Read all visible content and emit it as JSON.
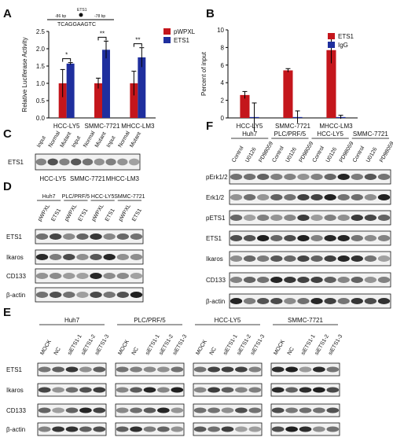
{
  "chart_data": [
    {
      "type": "bar",
      "panel_label": "A",
      "y_label": "Relative Luciferase Activity",
      "categories": [
        "HCC-LY5",
        "SMMC-7721",
        "MHCC-LM3"
      ],
      "series": [
        {
          "name": "pWPXL",
          "color": "#c4161c",
          "values": [
            1,
            1,
            1
          ],
          "errors": [
            0.4,
            0.15,
            0.35
          ]
        },
        {
          "name": "ETS1",
          "color": "#1f2f9e",
          "values": [
            1.57,
            1.97,
            1.75
          ],
          "errors": [
            0.03,
            0.25,
            0.28
          ]
        }
      ],
      "significance": [
        "*",
        "**",
        "**"
      ],
      "annotations": [
        "-86 bp",
        "ETS1",
        "-78 bp",
        "TCAGGAAGTC"
      ],
      "ylim": [
        0,
        2.5
      ],
      "yticks": [
        {
          "value": 0,
          "label": "0.0"
        },
        {
          "value": 0.5,
          "label": "0.5"
        },
        {
          "value": 1,
          "label": "1.0"
        },
        {
          "value": 1.5,
          "label": "1.5"
        },
        {
          "value": 2,
          "label": "2.0"
        },
        {
          "value": 2.5,
          "label": "2.5"
        }
      ],
      "legend": "right"
    },
    {
      "type": "bar",
      "panel_label": "B",
      "y_label": "Percent of input",
      "categories": [
        "HCC-LY5",
        "SMMC-7721",
        "MHCC-LM3"
      ],
      "series": [
        {
          "name": "ETS1",
          "color": "#c4161c",
          "values": [
            2.6,
            5.4,
            7.7
          ],
          "errors": [
            0.4,
            0.2,
            1.5
          ]
        },
        {
          "name": "IgG",
          "color": "#1f2f9e",
          "values": [
            0.1,
            0.1,
            0.1
          ],
          "errors": [
            1.6,
            0.7,
            0.2
          ]
        }
      ],
      "ylim": [
        0,
        10
      ],
      "yticks": [
        0,
        2,
        4,
        6,
        8,
        10
      ],
      "legend": "upper right"
    }
  ],
  "blots": {
    "C": {
      "label": "C",
      "rows": [
        "ETS1"
      ],
      "groups": [
        {
          "name": "HCC-LY5",
          "lanes": [
            "Input",
            "Normal",
            "Mutant"
          ]
        },
        {
          "name": "SMMC-7721",
          "lanes": [
            "Input",
            "Normal",
            "Mutant"
          ]
        },
        {
          "name": "MHCC-LM3",
          "lanes": [
            "Input",
            "Normal",
            "Mutant"
          ]
        }
      ]
    },
    "D": {
      "label": "D",
      "rows": [
        "ETS1",
        "Ikaros",
        "CD133",
        "β-actin"
      ],
      "groups": [
        {
          "name": "Huh7",
          "lanes": [
            "pWPXL",
            "ETS1"
          ]
        },
        {
          "name": "PLC/PRF/5",
          "lanes": [
            "pWPXL",
            "ETS1"
          ]
        },
        {
          "name": "HCC-LY5",
          "lanes": [
            "pWPXL",
            "ETS1"
          ]
        },
        {
          "name": "SMMC-7721",
          "lanes": [
            "pWPXL",
            "ETS1"
          ]
        }
      ]
    },
    "E": {
      "label": "E",
      "rows": [
        "ETS1",
        "Ikaros",
        "CD133",
        "β-actin"
      ],
      "groups": [
        {
          "name": "Huh7",
          "lanes": [
            "MOCK",
            "NC",
            "siETS1-1",
            "siETS1-2",
            "siETS1-3"
          ]
        },
        {
          "name": "PLC/PRF/5",
          "lanes": [
            "MOCK",
            "NC",
            "siETS1-1",
            "siETS1-2",
            "siETS1-3"
          ]
        },
        {
          "name": "HCC-LY5",
          "lanes": [
            "MOCK",
            "NC",
            "siETS1-1",
            "siETS1-2",
            "siETS1-3"
          ]
        },
        {
          "name": "SMMC-7721",
          "lanes": [
            "MOCK",
            "NC",
            "siETS1-1",
            "siETS1-2",
            "siETS1-3"
          ]
        }
      ]
    },
    "F": {
      "label": "F",
      "rows": [
        "pErk1/2",
        "Erk1/2",
        "pETS1",
        "ETS1",
        "Ikaros",
        "CD133",
        "β-actin"
      ],
      "groups": [
        {
          "name": "Huh7",
          "lanes": [
            "Control",
            "U0126",
            "PD98059"
          ]
        },
        {
          "name": "PLC/PRF/5",
          "lanes": [
            "Control",
            "U0126",
            "PD98059"
          ]
        },
        {
          "name": "HCC-LY5",
          "lanes": [
            "Control",
            "U0126",
            "PD98059"
          ]
        },
        {
          "name": "SMMC-7721",
          "lanes": [
            "Control",
            "U0126",
            "PD98059"
          ]
        }
      ]
    }
  }
}
